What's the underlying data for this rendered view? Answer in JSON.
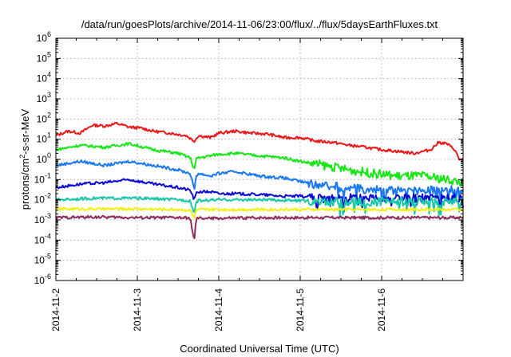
{
  "chart_data": {
    "type": "line",
    "title": "/data/run/goesPlots/archive/2014-11-06/23:00/flux/../flux/5daysEarthFluxes.txt",
    "xlabel": "Coordinated Universal Time (UTC)",
    "ylabel": {
      "prefix": "protons/cm",
      "sup": "2",
      "suffix": "-s-sr-MeV"
    },
    "x_range": [
      "2014-11-02",
      "2014-11-07"
    ],
    "x_ticks": [
      "2014-11-2",
      "2014-11-3",
      "2014-11-4",
      "2014-11-5",
      "2014-11-6"
    ],
    "y_scale": "log",
    "ylim": [
      1e-06,
      1000000
    ],
    "y_tick_exponents": [
      -6,
      -5,
      -4,
      -3,
      -2,
      -1,
      0,
      1,
      2,
      3,
      4,
      5,
      6
    ],
    "y_tick_base": "10",
    "grid": true,
    "legend": "none",
    "series": [
      {
        "color": "#e8191b",
        "days": [
          0.0,
          0.15,
          0.3,
          0.45,
          0.6,
          0.75,
          0.9,
          1.05,
          1.2,
          1.4,
          1.6,
          1.7,
          1.75,
          1.9,
          2.0,
          2.2,
          2.4,
          2.6,
          2.8,
          3.0,
          3.2,
          3.4,
          3.6,
          3.8,
          4.0,
          4.2,
          4.4,
          4.6,
          4.7,
          4.8,
          4.9,
          4.95,
          5.0
        ],
        "values": [
          15,
          25,
          20,
          50,
          45,
          60,
          40,
          35,
          25,
          20,
          15,
          8,
          15,
          12,
          20,
          25,
          20,
          18,
          12,
          12,
          8,
          7,
          5,
          4,
          3,
          2.5,
          2,
          3,
          7,
          6,
          3,
          1,
          1
        ]
      },
      {
        "color": "#19e619",
        "days": [
          0.0,
          0.3,
          0.6,
          0.9,
          1.2,
          1.5,
          1.65,
          1.7,
          1.72,
          1.75,
          1.9,
          2.0,
          2.2,
          2.5,
          2.8,
          3.0,
          3.3,
          3.6,
          3.9,
          4.2,
          4.5,
          4.8,
          5.0
        ],
        "values": [
          3,
          5,
          4,
          6,
          3,
          2,
          1.2,
          0.3,
          1,
          1.2,
          1.5,
          1.8,
          2,
          1.5,
          1.2,
          0.8,
          0.5,
          0.3,
          0.2,
          0.15,
          0.15,
          0.1,
          0.07
        ]
      },
      {
        "color": "#1a78f0",
        "days": [
          0.0,
          0.3,
          0.6,
          0.9,
          1.2,
          1.5,
          1.65,
          1.7,
          1.72,
          1.75,
          1.9,
          2.0,
          2.2,
          2.5,
          2.8,
          3.0,
          3.3,
          3.6,
          3.9,
          4.2,
          4.5,
          4.8,
          5.0
        ],
        "values": [
          0.5,
          0.8,
          0.5,
          0.8,
          0.5,
          0.3,
          0.2,
          0.03,
          0.15,
          0.2,
          0.15,
          0.2,
          0.25,
          0.15,
          0.12,
          0.08,
          0.05,
          0.04,
          0.03,
          0.03,
          0.03,
          0.03,
          0.03
        ]
      },
      {
        "color": "#0a0ad2",
        "days": [
          0.0,
          0.3,
          0.6,
          0.9,
          1.2,
          1.5,
          1.65,
          1.7,
          1.72,
          1.75,
          1.9,
          2.0,
          2.2,
          2.5,
          2.8,
          3.0,
          3.3,
          3.6,
          3.9,
          4.2,
          4.5,
          4.8,
          5.0
        ],
        "values": [
          0.04,
          0.06,
          0.07,
          0.1,
          0.06,
          0.04,
          0.03,
          0.01,
          0.02,
          0.025,
          0.025,
          0.02,
          0.02,
          0.018,
          0.015,
          0.015,
          0.012,
          0.012,
          0.012,
          0.012,
          0.012,
          0.012,
          0.012
        ]
      },
      {
        "color": "#19c8a8",
        "days": [
          0.0,
          0.5,
          1.0,
          1.5,
          1.65,
          1.7,
          1.72,
          1.75,
          2.0,
          2.5,
          3.0,
          3.5,
          4.0,
          4.5,
          5.0
        ],
        "values": [
          0.01,
          0.012,
          0.012,
          0.01,
          0.009,
          0.002,
          0.008,
          0.009,
          0.01,
          0.01,
          0.009,
          0.008,
          0.008,
          0.008,
          0.008
        ]
      },
      {
        "color": "#f0f019",
        "days": [
          0.0,
          0.5,
          1.0,
          1.5,
          1.65,
          1.7,
          1.72,
          1.75,
          2.0,
          2.5,
          3.0,
          3.5,
          4.0,
          4.5,
          5.0
        ],
        "values": [
          0.0035,
          0.0035,
          0.0035,
          0.0033,
          0.003,
          0.0012,
          0.003,
          0.0032,
          0.0033,
          0.0033,
          0.0033,
          0.0033,
          0.0033,
          0.0033,
          0.0033
        ]
      },
      {
        "color": "#8c2d5a",
        "days": [
          0.0,
          0.5,
          1.0,
          1.5,
          1.65,
          1.7,
          1.72,
          1.75,
          2.0,
          2.5,
          3.0,
          3.5,
          4.0,
          4.5,
          5.0
        ],
        "values": [
          0.0013,
          0.0014,
          0.0013,
          0.0013,
          0.0012,
          8e-05,
          0.0011,
          0.0012,
          0.0012,
          0.0013,
          0.0013,
          0.0013,
          0.0013,
          0.0013,
          0.0013
        ]
      }
    ]
  }
}
